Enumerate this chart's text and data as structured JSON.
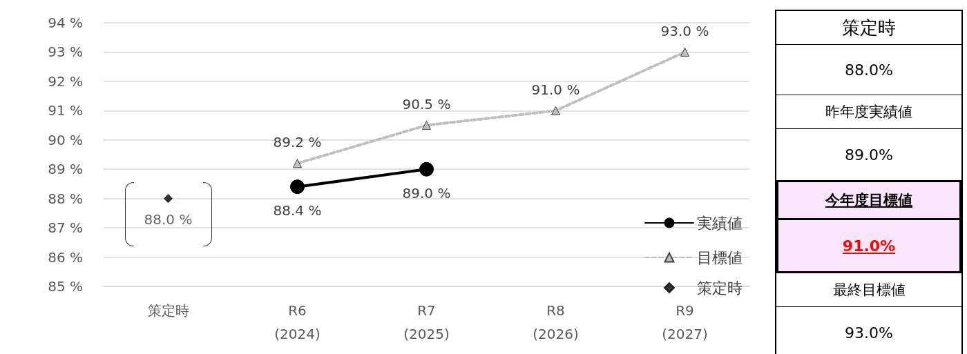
{
  "chart_data": [
    {
      "type": "line",
      "categories": [
        "策定時",
        "R6\n(2024)",
        "R7\n(2025)",
        "R8\n(2026)",
        "R9\n(2027)"
      ],
      "series": [
        {
          "name": "実績値",
          "color": "#000000",
          "marker": "circle",
          "line_style": "solid",
          "values": [
            null,
            88.4,
            89.0,
            null,
            null
          ],
          "value_labels": [
            null,
            "88.4 %",
            "89.0 %",
            null,
            null
          ]
        },
        {
          "name": "目標値",
          "color": "#bfbfbf",
          "marker": "triangle",
          "line_style": "dashed",
          "values": [
            null,
            89.2,
            90.5,
            91.0,
            93.0
          ],
          "value_labels": [
            null,
            "89.2 %",
            "90.5 %",
            "91.0 %",
            "93.0 %"
          ]
        },
        {
          "name": "策定時",
          "type": "scatter",
          "color": "#000000",
          "marker": "diamond",
          "values": [
            88.0,
            null,
            null,
            null,
            null
          ],
          "value_labels": [
            "88.0 %",
            null,
            null,
            null,
            null
          ]
        }
      ],
      "ylim": [
        85,
        94
      ],
      "yticks": [
        {
          "value": 85,
          "label": "85 %"
        },
        {
          "value": 86,
          "label": "86 %"
        },
        {
          "value": 87,
          "label": "87 %"
        },
        {
          "value": 88,
          "label": "88 %"
        },
        {
          "value": 89,
          "label": "89 %"
        },
        {
          "value": 90,
          "label": "90 %"
        },
        {
          "value": 91,
          "label": "91 %"
        },
        {
          "value": 92,
          "label": "92 %"
        },
        {
          "value": 93,
          "label": "93 %"
        },
        {
          "value": 94,
          "label": "94 %"
        }
      ],
      "grid": "y",
      "legend": "bottom right"
    },
    {
      "type": "other",
      "annotations": [
        "策定時",
        "88.0%",
        "昨年度実績値",
        "89.0%",
        "今年度目標値",
        "91.0%",
        "最終目標値",
        "93.0%"
      ]
    }
  ]
}
